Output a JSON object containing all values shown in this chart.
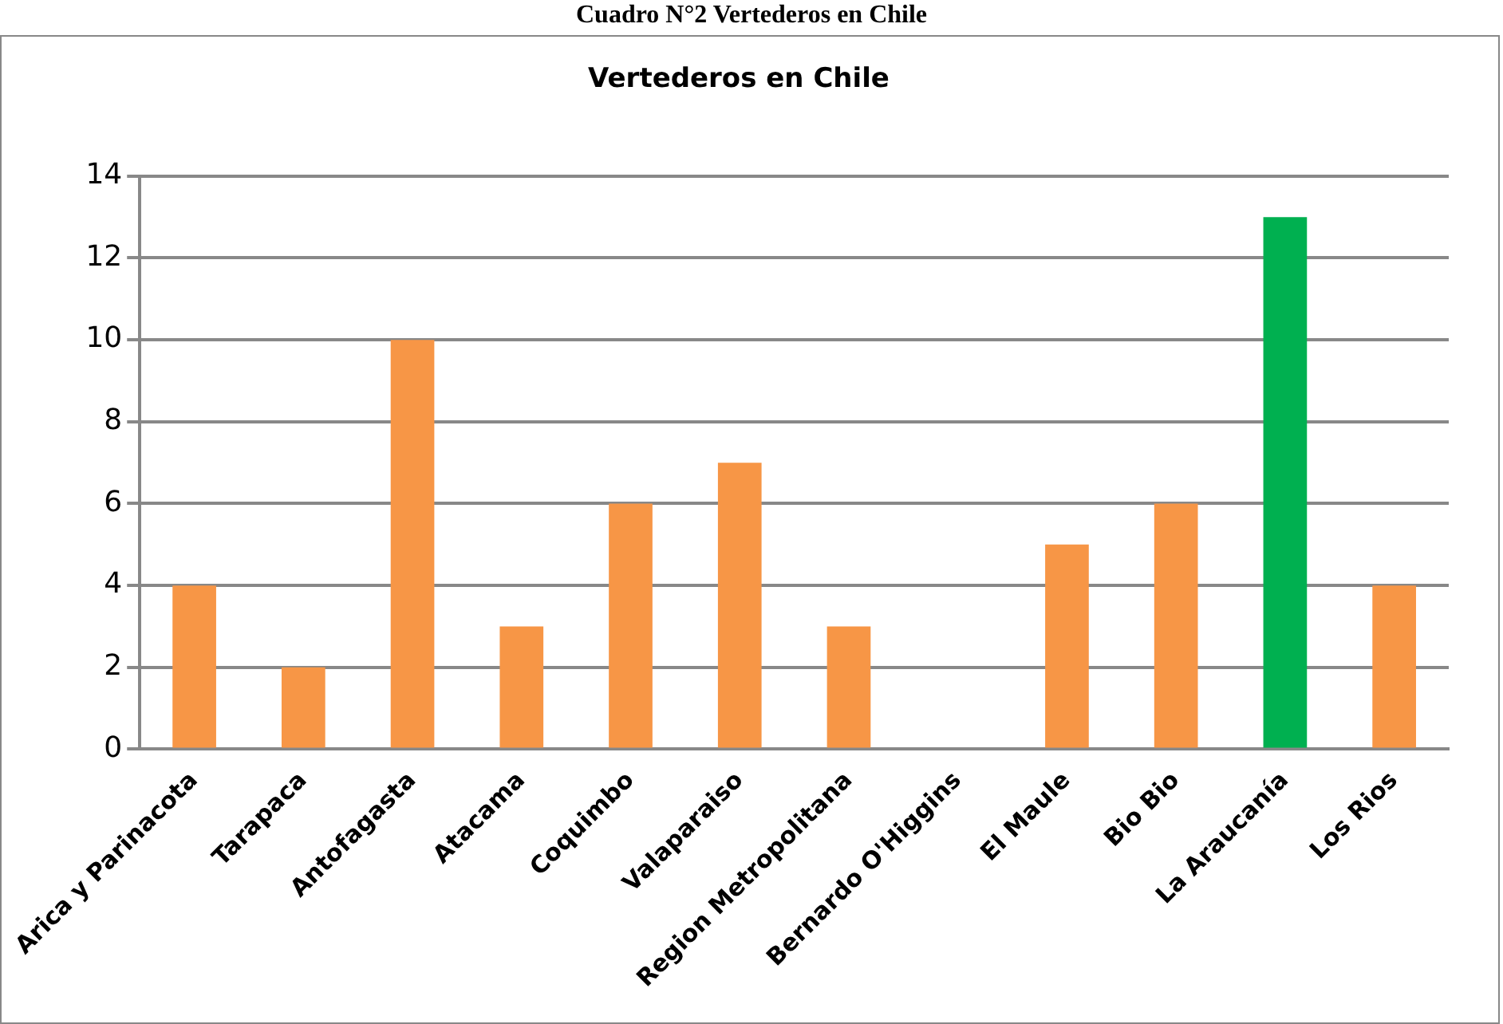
{
  "chart_data": {
    "type": "bar",
    "title": "Vertederos en Chile",
    "annotations": [
      "Cuadro N°2 Vertederos en Chile"
    ],
    "categories": [
      "Arica y Parinacota",
      "Tarapaca",
      "Antofagasta",
      "Atacama",
      "Coquimbo",
      "Valaparaiso",
      "Region Metropolitana",
      "Bernardo O'Higgins",
      "El Maule",
      "Bio Bio",
      "La Araucanía",
      "Los Rios"
    ],
    "values": [
      4,
      2,
      10,
      3,
      6,
      7,
      3,
      0,
      5,
      6,
      13,
      4
    ],
    "colors": [
      "#f79646",
      "#f79646",
      "#f79646",
      "#f79646",
      "#f79646",
      "#f79646",
      "#f79646",
      "#f79646",
      "#f79646",
      "#f79646",
      "#00b050",
      "#f79646"
    ],
    "ylim": [
      0,
      14
    ],
    "yticks": [
      0,
      2,
      4,
      6,
      8,
      10,
      12,
      14
    ],
    "grid": "y",
    "legend": false
  }
}
